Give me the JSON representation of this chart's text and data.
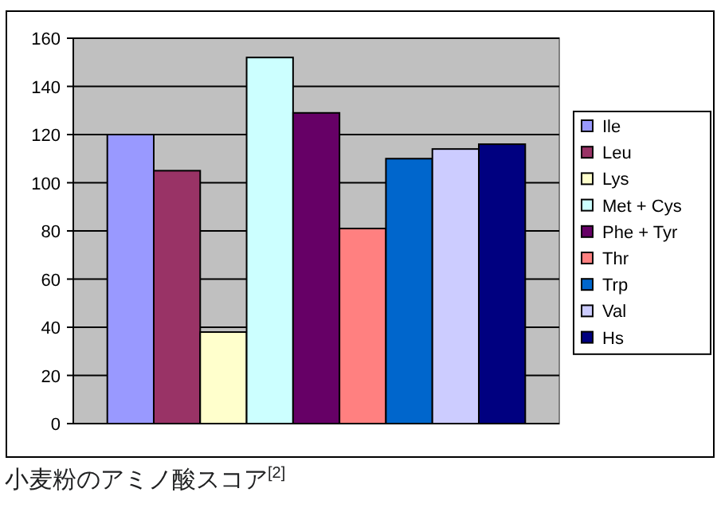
{
  "chart_data": {
    "type": "bar",
    "categories": [
      null
    ],
    "series": [
      {
        "name": "Ile",
        "color": "#9999ff",
        "values": [
          120
        ]
      },
      {
        "name": "Leu",
        "color": "#993366",
        "values": [
          105
        ]
      },
      {
        "name": "Lys",
        "color": "#ffffcc",
        "values": [
          38
        ]
      },
      {
        "name": "Met + Cys",
        "color": "#ccffff",
        "values": [
          152
        ]
      },
      {
        "name": "Phe + Tyr",
        "color": "#660066",
        "values": [
          129
        ]
      },
      {
        "name": "Thr",
        "color": "#ff8080",
        "values": [
          81
        ]
      },
      {
        "name": "Trp",
        "color": "#0066cc",
        "values": [
          110
        ]
      },
      {
        "name": "Val",
        "color": "#ccccff",
        "values": [
          114
        ]
      },
      {
        "name": "Hs",
        "color": "#000080",
        "values": [
          116
        ]
      }
    ],
    "ylim": [
      0,
      160
    ],
    "yticks": [
      0,
      20,
      40,
      60,
      80,
      100,
      120,
      140,
      160
    ],
    "grid": "y",
    "legend": "right",
    "annotations": [
      "小麦粉のアミノ酸スコア$^{[2]}$"
    ]
  }
}
